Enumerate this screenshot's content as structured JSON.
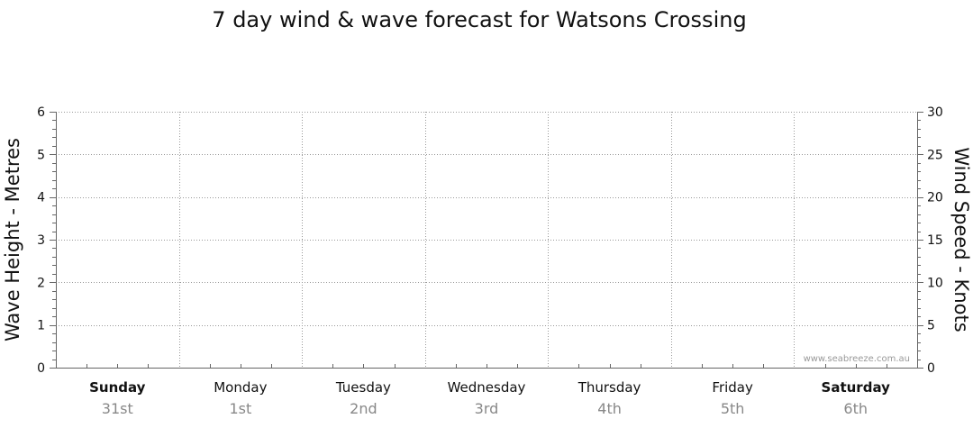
{
  "chart_data": {
    "type": "line",
    "title": "7 day wind & wave forecast for Watsons Crossing",
    "y_left": {
      "label": "Wave Height - Metres",
      "range": [
        0,
        6
      ],
      "ticks": [
        0,
        1,
        2,
        3,
        4,
        5,
        6
      ]
    },
    "y_right": {
      "label": "Wind Speed - Knots",
      "range": [
        0,
        30
      ],
      "ticks": [
        0,
        5,
        10,
        15,
        20,
        25,
        30
      ]
    },
    "days": [
      {
        "name": "Sunday",
        "date": "31st",
        "weekend": true
      },
      {
        "name": "Monday",
        "date": "1st",
        "weekend": false
      },
      {
        "name": "Tuesday",
        "date": "2nd",
        "weekend": false
      },
      {
        "name": "Wednesday",
        "date": "3rd",
        "weekend": false
      },
      {
        "name": "Thursday",
        "date": "4th",
        "weekend": false
      },
      {
        "name": "Friday",
        "date": "5th",
        "weekend": false
      },
      {
        "name": "Saturday",
        "date": "6th",
        "weekend": true
      }
    ],
    "series": [],
    "grid": true,
    "watermark": "www.seabreeze.com.au"
  }
}
